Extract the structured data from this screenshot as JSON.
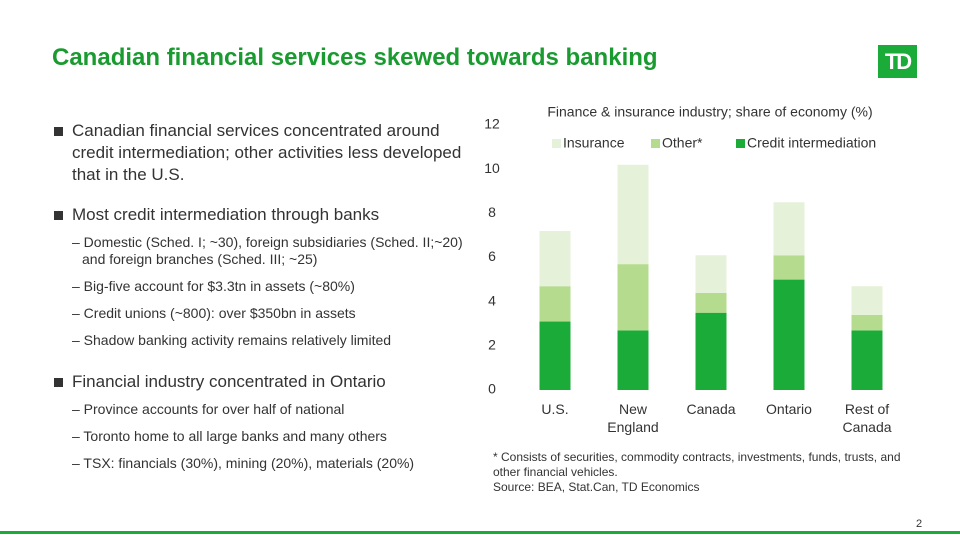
{
  "header": {
    "title": "Canadian financial services skewed towards banking",
    "logo": "TD"
  },
  "bullets": [
    {
      "text": "Canadian financial services concentrated around credit intermediation; other activities less developed that in the U.S.",
      "subs": []
    },
    {
      "text": "Most credit intermediation through banks",
      "subs": [
        "– Domestic (Sched. I; ~30), foreign subsidiaries (Sched. II;~20) and foreign branches (Sched. III; ~25)",
        "– Big-five account for $3.3tn in assets (~80%)",
        "– Credit unions (~800): over $350bn in assets",
        "– Shadow banking activity remains relatively limited"
      ]
    },
    {
      "text": "Financial industry concentrated in Ontario",
      "subs": [
        "– Province accounts for over half of national",
        "– Toronto home to all large banks and many others",
        "– TSX: financials (30%), mining (20%), materials (20%)"
      ]
    }
  ],
  "chart_data": {
    "type": "stacked-bar",
    "title": "Finance & insurance industry; share of economy (%)",
    "categories": [
      "U.S.",
      "New England",
      "Canada",
      "Ontario",
      "Rest of Canada"
    ],
    "series": [
      {
        "name": "Insurance",
        "color": "#e5f1d9",
        "values": [
          2.5,
          4.5,
          1.7,
          2.4,
          1.3
        ]
      },
      {
        "name": "Other*",
        "color": "#b5dc8e",
        "values": [
          1.6,
          3.0,
          0.9,
          1.1,
          0.7
        ]
      },
      {
        "name": "Credit intermediation",
        "color": "#1aab38",
        "values": [
          3.1,
          2.7,
          3.5,
          5.0,
          2.7
        ]
      }
    ],
    "ylim": [
      0,
      12
    ],
    "yticks": [
      0,
      2,
      4,
      6,
      8,
      10,
      12
    ],
    "grid": false,
    "legend": "top",
    "notes": [
      "* Consists of securities, commodity contracts, investments, funds, trusts, and other financial vehicles.",
      "Source: BEA, Stat.Can, TD Economics"
    ]
  },
  "footer": {
    "page": "2"
  }
}
